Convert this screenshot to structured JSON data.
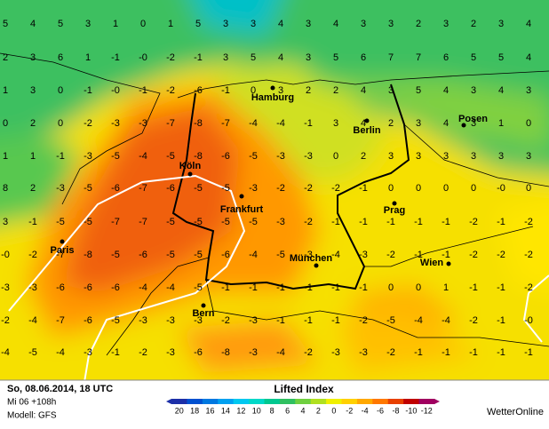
{
  "map": {
    "grid": [
      [
        "5",
        "4",
        "5",
        "3",
        "1",
        "0",
        "1",
        "5",
        "3",
        "3",
        "4",
        "3",
        "4",
        "3",
        "3",
        "2",
        "3",
        "2",
        "3",
        "4"
      ],
      [
        "2",
        "3",
        "6",
        "1",
        "-1",
        "-0",
        "-2",
        "-1",
        "3",
        "5",
        "4",
        "3",
        "5",
        "6",
        "7",
        "7",
        "6",
        "5",
        "5",
        "4"
      ],
      [
        "1",
        "3",
        "0",
        "-1",
        "-0",
        "-1",
        "-2",
        "-6",
        "-1",
        "0",
        "3",
        "2",
        "2",
        "4",
        "3",
        "5",
        "4",
        "3",
        "4",
        "3"
      ],
      [
        "0",
        "2",
        "0",
        "-2",
        "-3",
        "-3",
        "-7",
        "-8",
        "-7",
        "-4",
        "-4",
        "-1",
        "3",
        "4",
        "2",
        "3",
        "4",
        "3",
        "1",
        "0"
      ],
      [
        "1",
        "1",
        "-1",
        "-3",
        "-5",
        "-4",
        "-5",
        "-8",
        "-6",
        "-5",
        "-3",
        "-3",
        "0",
        "2",
        "3",
        "3",
        "3",
        "3",
        "3",
        "3"
      ],
      [
        "8",
        "2",
        "-3",
        "-5",
        "-6",
        "-7",
        "-6",
        "-5",
        "-5",
        "-3",
        "-2",
        "-2",
        "-2",
        "-1",
        "0",
        "0",
        "0",
        "0",
        "-0",
        "0"
      ],
      [
        "3",
        "-1",
        "-5",
        "-5",
        "-7",
        "-7",
        "-5",
        "-5",
        "-5",
        "-5",
        "-3",
        "-2",
        "-1",
        "-1",
        "-1",
        "-1",
        "-1",
        "-2",
        "-1",
        "-2"
      ],
      [
        "-0",
        "-2",
        "-7",
        "-8",
        "-5",
        "-6",
        "-5",
        "-5",
        "-6",
        "-4",
        "-5",
        "-3",
        "-4",
        "-3",
        "-2",
        "-1",
        "-1",
        "-2",
        "-2",
        "-2"
      ],
      [
        "-3",
        "-3",
        "-6",
        "-6",
        "-6",
        "-4",
        "-4",
        "-5",
        "-1",
        "-1",
        "-1",
        "-1",
        "-1",
        "-1",
        "0",
        "0",
        "1",
        "-1",
        "-1",
        "-2"
      ],
      [
        "-2",
        "-4",
        "-7",
        "-6",
        "-5",
        "-3",
        "-3",
        "-3",
        "-2",
        "-3",
        "-1",
        "-1",
        "-1",
        "-2",
        "-5",
        "-4",
        "-4",
        "-2",
        "-1",
        "-0"
      ],
      [
        "-4",
        "-5",
        "-4",
        "-3",
        "-1",
        "-2",
        "-3",
        "-6",
        "-8",
        "-3",
        "-4",
        "-2",
        "-3",
        "-3",
        "-2",
        "-1",
        "-1",
        "-1",
        "-1",
        "-1"
      ]
    ],
    "cities": [
      "Hamburg",
      "Berlin",
      "Posen",
      "Köln",
      "Frankfurt",
      "Prag",
      "Paris",
      "München",
      "Wien",
      "Bern"
    ]
  },
  "footer": {
    "date": "So, 08.06.2014, 18 UTC",
    "lead": "Mi 06 +108h",
    "model": "Modell: GFS",
    "brand": "WetterOnline"
  },
  "legend": {
    "title": "Lifted Index",
    "labels": [
      "20",
      "18",
      "16",
      "14",
      "12",
      "10",
      "8",
      "6",
      "4",
      "2",
      "0",
      "-2",
      "-4",
      "-6",
      "-8",
      "-10",
      "-12"
    ],
    "colors": [
      "#1c2fa8",
      "#0050d0",
      "#0078e0",
      "#00a0f0",
      "#00c8f0",
      "#00d8c8",
      "#00c890",
      "#30c060",
      "#70d040",
      "#b0e020",
      "#f0f000",
      "#ffd000",
      "#ffa800",
      "#ff7800",
      "#e84000",
      "#c00000",
      "#a00060"
    ]
  }
}
